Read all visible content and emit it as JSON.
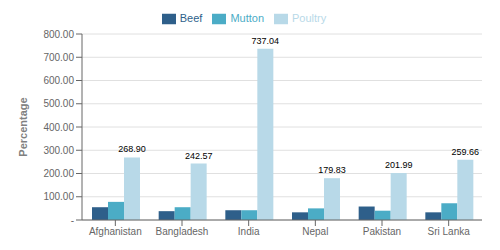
{
  "chart_data": {
    "type": "bar",
    "y_label": "Percentage",
    "categories": [
      "Afghanistan",
      "Bangladesh",
      "India",
      "Nepal",
      "Pakistan",
      "Sri Lanka"
    ],
    "series": [
      {
        "name": "Beef",
        "color": "#2e5f8a",
        "values": [
          55,
          38,
          42,
          33,
          58,
          33
        ]
      },
      {
        "name": "Mutton",
        "color": "#4bacc6",
        "values": [
          78,
          55,
          42,
          50,
          40,
          72
        ]
      },
      {
        "name": "Poultry",
        "color": "#b8d9e8",
        "values": [
          268.9,
          242.57,
          737.04,
          179.83,
          201.99,
          259.66
        ],
        "data_labels": true,
        "value_labels": [
          "268.90",
          "242.57",
          "737.04",
          "179.83",
          "201.99",
          "259.66"
        ]
      }
    ],
    "ylim": [
      0,
      800
    ],
    "yticks": [
      {
        "value": 0,
        "label": "-"
      },
      {
        "value": 100,
        "label": "100.00"
      },
      {
        "value": 200,
        "label": "200.00"
      },
      {
        "value": 300,
        "label": "300.00"
      },
      {
        "value": 400,
        "label": "400.00"
      },
      {
        "value": 500,
        "label": "500.00"
      },
      {
        "value": 600,
        "label": "600.00"
      },
      {
        "value": 700,
        "label": "700.00"
      },
      {
        "value": 800,
        "label": "800.00"
      }
    ],
    "grid": true,
    "legend": "top"
  }
}
